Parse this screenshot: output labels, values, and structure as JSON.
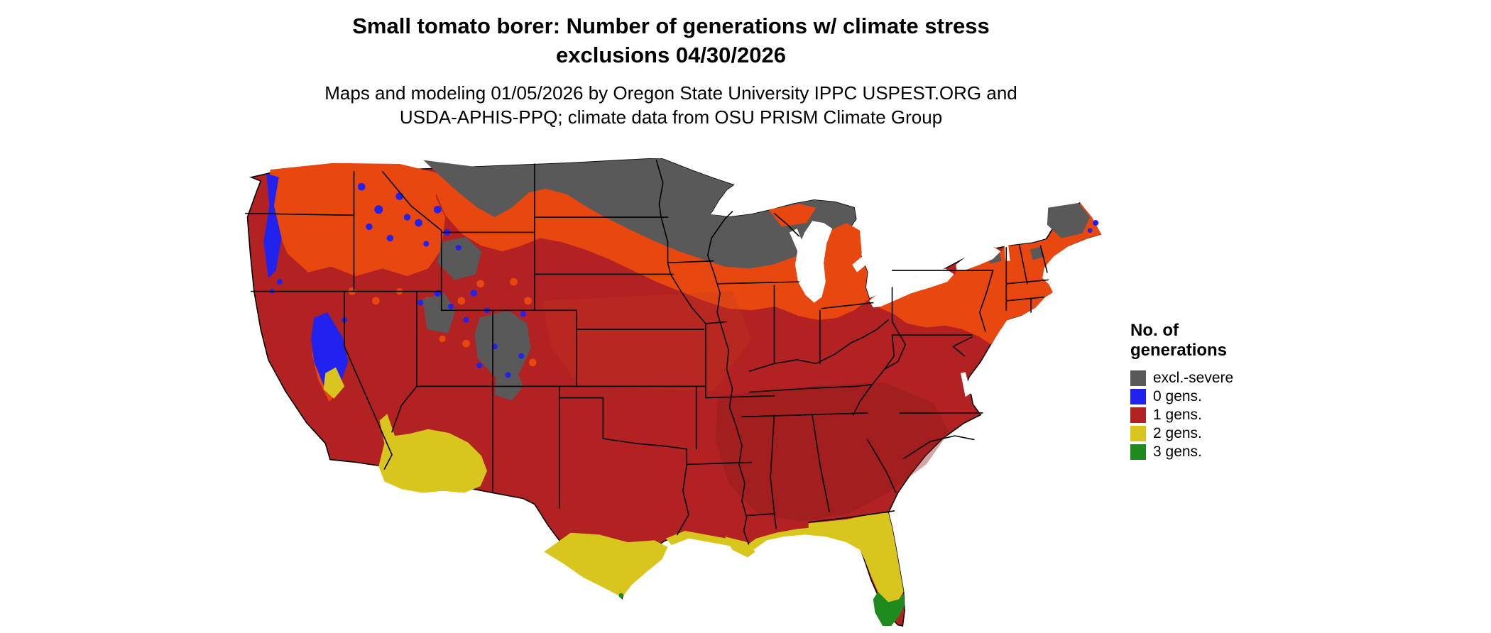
{
  "title": {
    "line1": "Small tomato borer: Number of generations w/ climate stress",
    "line2": "exclusions 04/30/2026"
  },
  "subtitle": {
    "line1": "Maps and modeling 01/05/2026 by Oregon State University IPPC USPEST.ORG and",
    "line2": "USDA-APHIS-PPQ; climate data from OSU PRISM Climate Group"
  },
  "legend": {
    "title_line1": "No. of",
    "title_line2": "generations",
    "items": [
      {
        "label": "excl.-severe",
        "color": "#595959"
      },
      {
        "label": "0 gens.",
        "color": "#2222ee"
      },
      {
        "label": "1 gens.",
        "color": "#b22222"
      },
      {
        "label": "2 gens.",
        "color": "#d8c51e"
      },
      {
        "label": "3 gens.",
        "color": "#1f8b1f"
      }
    ]
  },
  "map": {
    "description": "Continental United States raster map of small tomato borer generations with climate stress exclusions",
    "colors": {
      "excl_severe": "#595959",
      "gens0": "#2222ee",
      "gens1": "#b22222",
      "gens2": "#d8c51e",
      "gens3": "#1f8b1f",
      "transition_orange": "#e8470f",
      "water": "#ffffff",
      "border": "#000000"
    },
    "regions": [
      {
        "class": "excl.-severe",
        "areas": "Northern Plains (ND, MN, WI, northern MI), northern Montana, high Rockies of WY/CO/UT, northern New Mexico mountains, northern Maine"
      },
      {
        "class": "0 gens.",
        "areas": "Cascades, Sierra Nevada, scattered northern and central Rockies, far northeastern Maine"
      },
      {
        "class": "1 gens.",
        "areas": "Most of the contiguous US: interior West, central Plains, Midwest, South and East"
      },
      {
        "class": "2 gens.",
        "areas": "Southern Arizona, southern Texas, Gulf Coast strip, most of the Florida peninsula, parts of the California valley"
      },
      {
        "class": "3 gens.",
        "areas": "Southern tip of Florida and the Keys"
      }
    ]
  }
}
